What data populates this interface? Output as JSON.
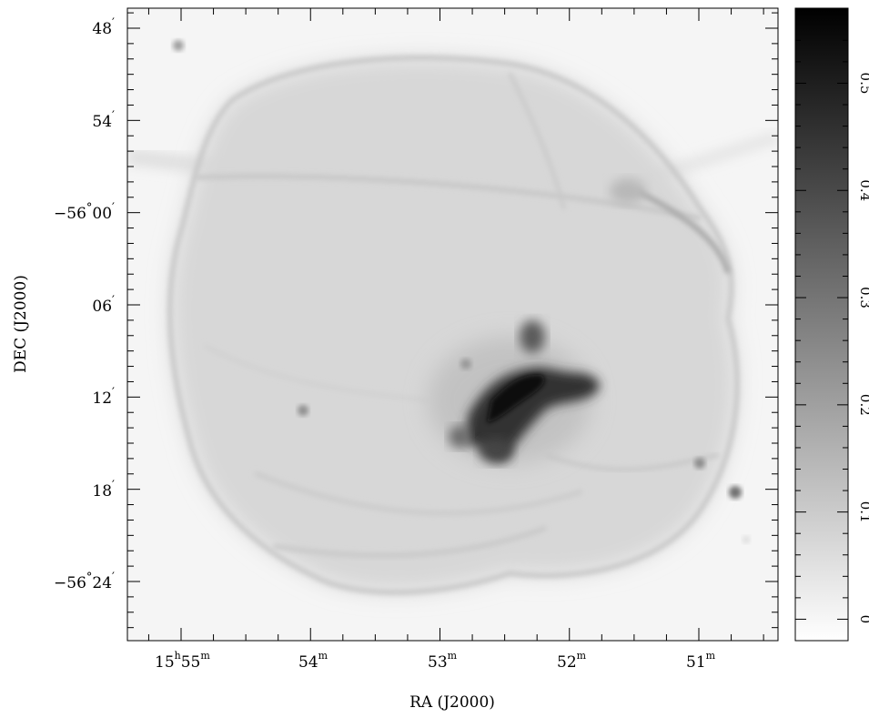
{
  "chart_data": {
    "type": "heatmap",
    "colormap": "inverted grayscale",
    "xlabel": "RA (J2000)",
    "ylabel": "DEC (J2000)",
    "x_ticks": [
      {
        "h": "15",
        "m": "55",
        "label_main": "15",
        "sup1": "h",
        "label_mid": "55",
        "sup2": "m"
      },
      {
        "m": "54",
        "label_main": "54",
        "sup2": "m"
      },
      {
        "m": "53",
        "label_main": "53",
        "sup2": "m"
      },
      {
        "m": "52",
        "label_main": "52",
        "sup2": "m"
      },
      {
        "m": "51",
        "label_main": "51",
        "sup2": "m"
      }
    ],
    "x_tick_ra_minutes": [
      55,
      54,
      53,
      52,
      51
    ],
    "y_ticks": [
      {
        "arcmin_offset": 48,
        "deg": "",
        "label_main": "48",
        "sup": "′"
      },
      {
        "arcmin_offset": 54,
        "deg": "",
        "label_main": "54",
        "sup": "′"
      },
      {
        "arcmin_offset": 60,
        "deg": "−56",
        "label_main": "00",
        "sup": "′"
      },
      {
        "arcmin_offset": 66,
        "deg": "",
        "label_main": "06",
        "sup": "′"
      },
      {
        "arcmin_offset": 72,
        "deg": "",
        "label_main": "12",
        "sup": "′"
      },
      {
        "arcmin_offset": 78,
        "deg": "",
        "label_main": "18",
        "sup": "′"
      },
      {
        "arcmin_offset": 84,
        "deg": "−56",
        "label_main": "24",
        "sup": "′"
      }
    ],
    "colorbar": {
      "ticks": [
        "0",
        "0.1",
        "0.2",
        "0.3",
        "0.4",
        "0.5"
      ],
      "tick_values": [
        0,
        0.1,
        0.2,
        0.3,
        0.4,
        0.5
      ],
      "range": [
        -0.02,
        0.57
      ]
    },
    "grid": false
  }
}
